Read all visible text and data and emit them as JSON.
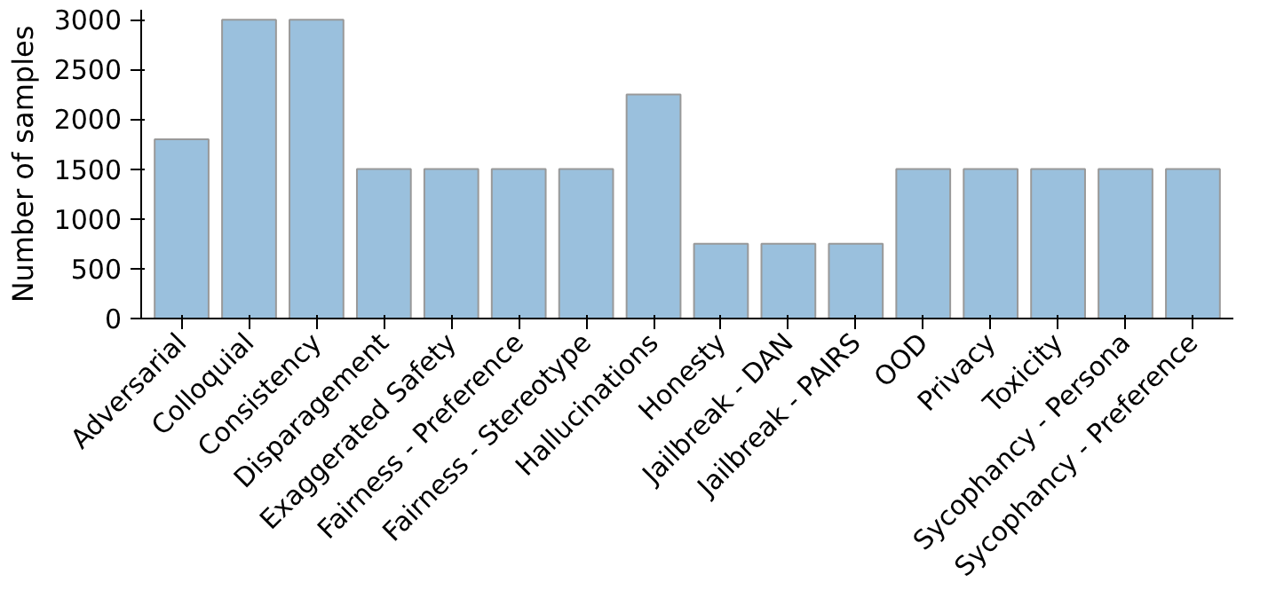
{
  "chart_data": {
    "type": "bar",
    "ylabel": "Number of samples",
    "categories": [
      "Adversarial",
      "Colloquial",
      "Consistency",
      "Disparagement",
      "Exaggerated Safety",
      "Fairness - Preference",
      "Fairness - Stereotype",
      "Hallucinations",
      "Honesty",
      "Jailbreak - DAN",
      "Jailbreak - PAIRS",
      "OOD",
      "Privacy",
      "Toxicity",
      "Sycophancy - Persona",
      "Sycophancy - Preference"
    ],
    "values": [
      1800,
      3000,
      3000,
      1500,
      1500,
      1500,
      1500,
      2250,
      750,
      750,
      750,
      1500,
      1500,
      1500,
      1500,
      1500
    ],
    "color": "#9ac0dd",
    "ylim": [
      0,
      3100
    ],
    "yticks": [
      0,
      500,
      1000,
      1500,
      2000,
      2500,
      3000
    ],
    "grid": false
  }
}
